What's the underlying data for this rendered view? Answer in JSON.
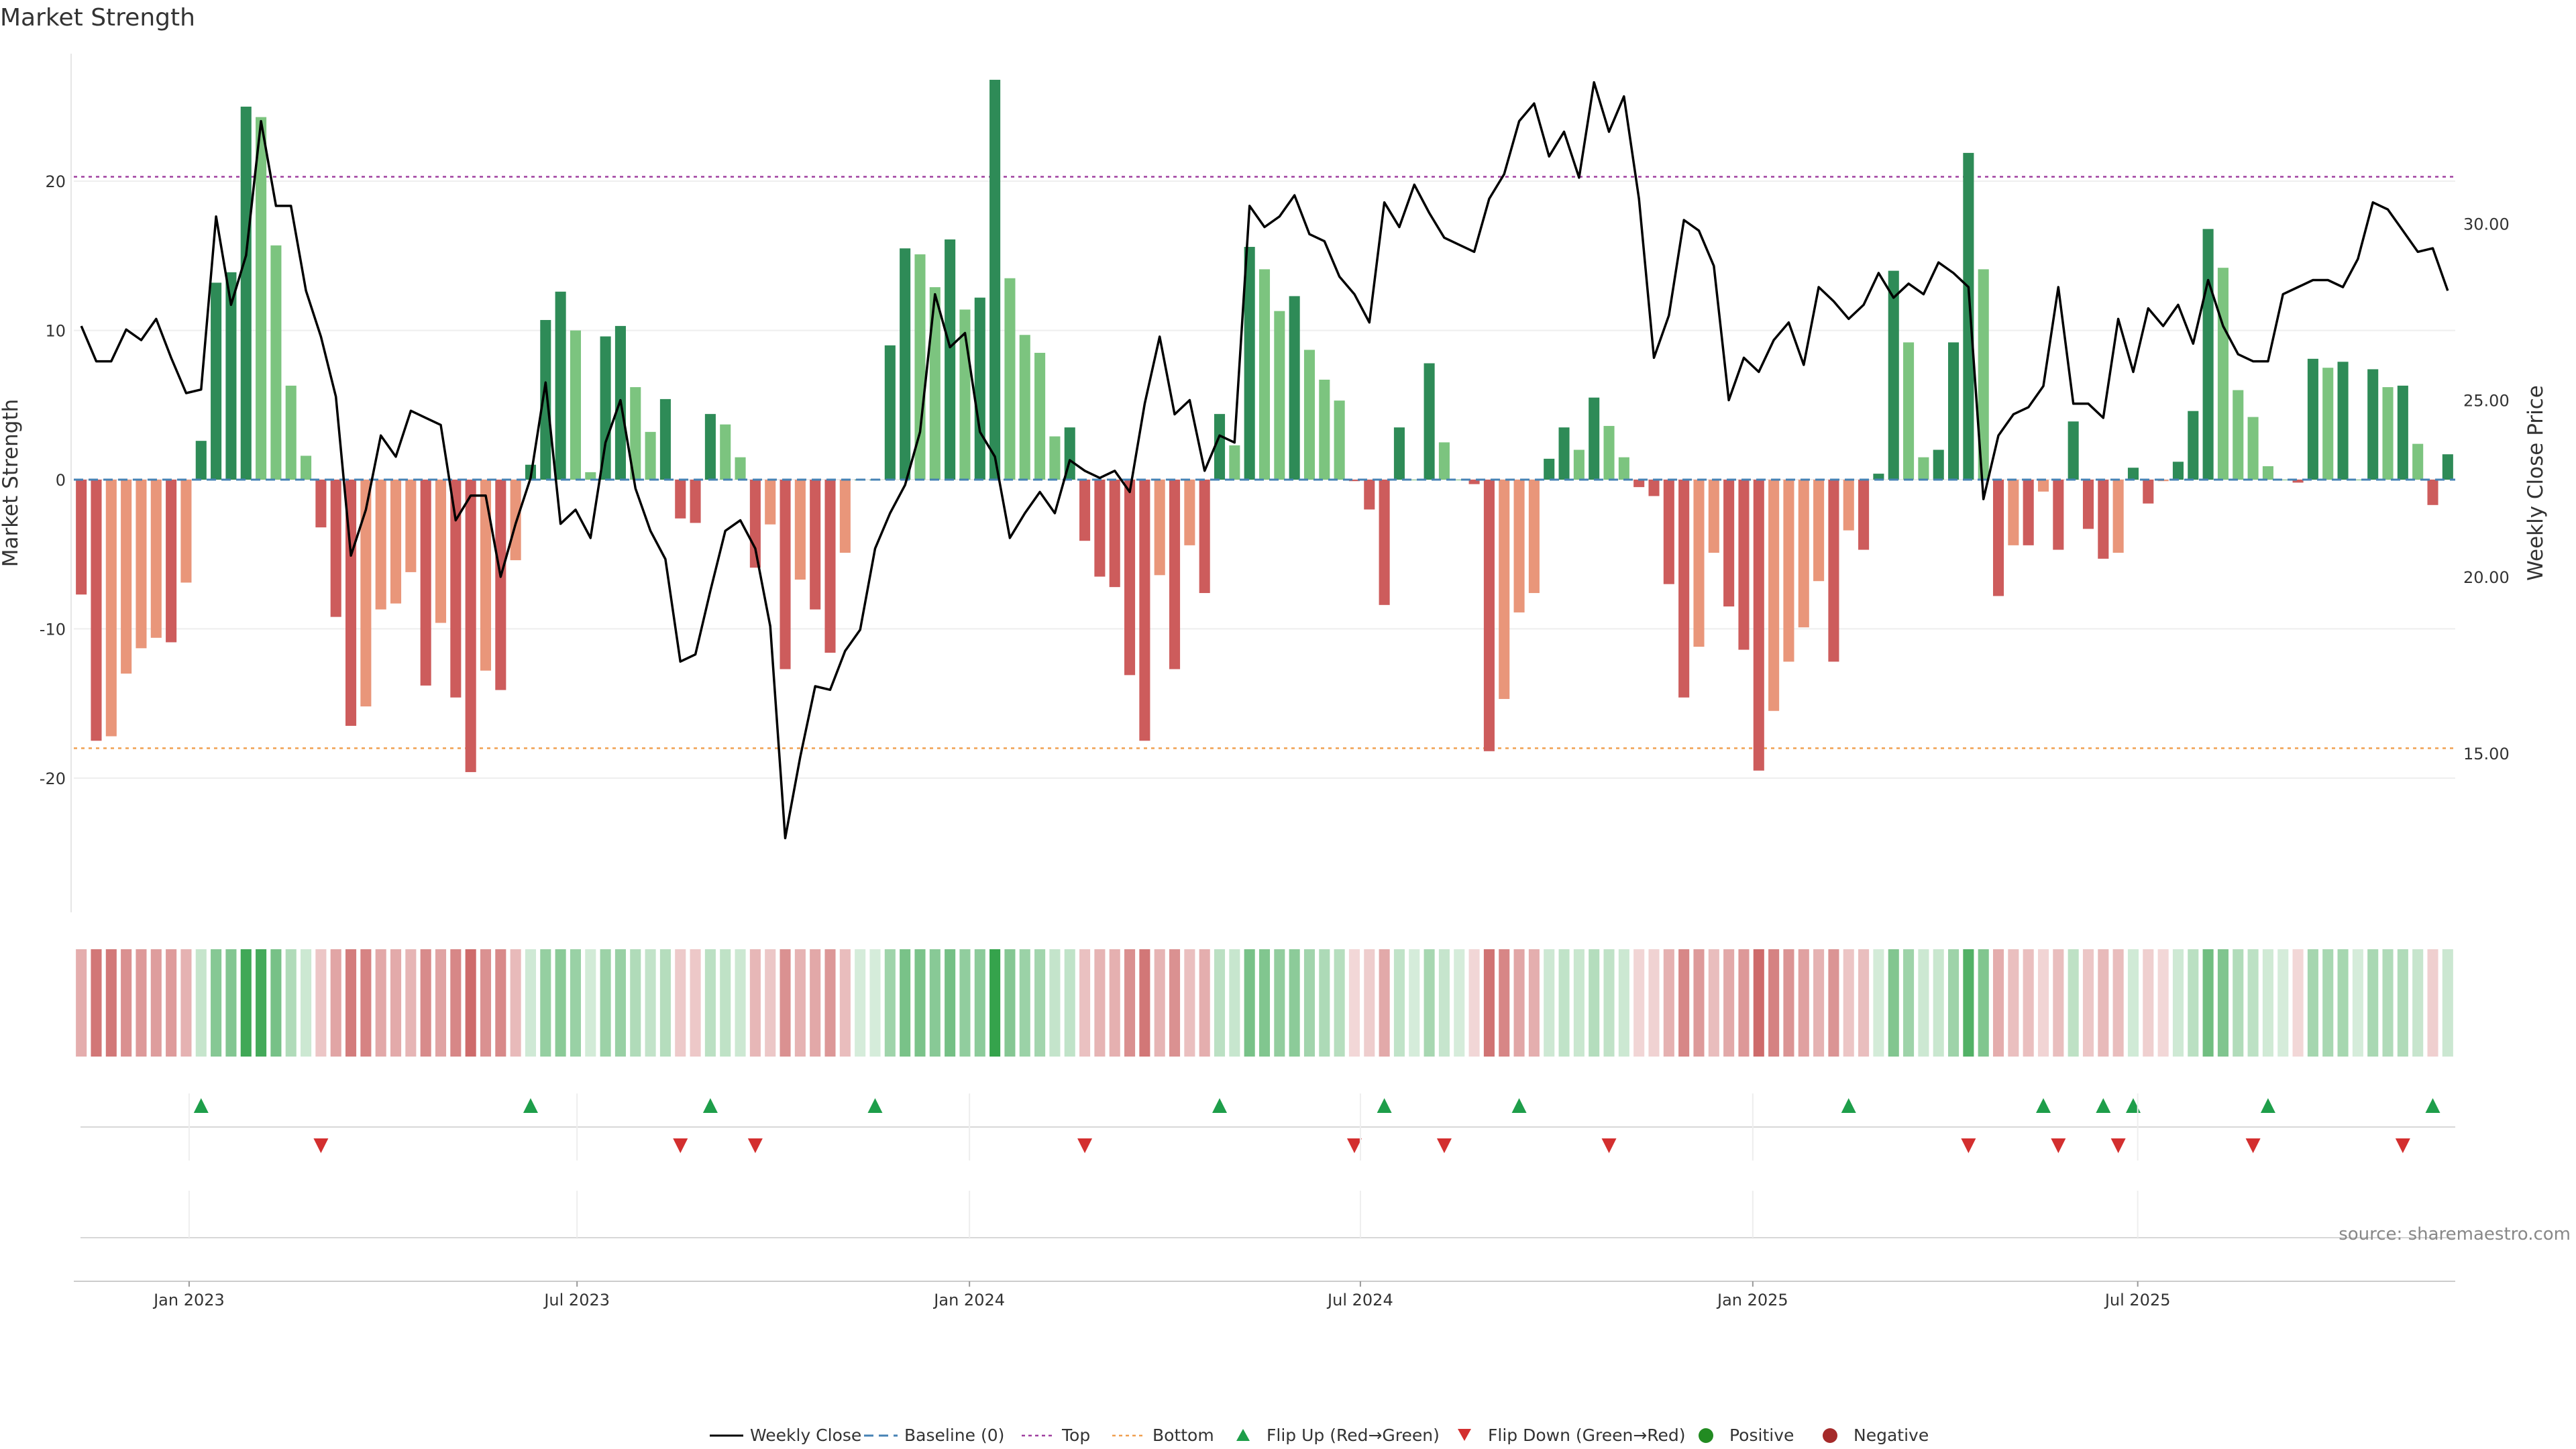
{
  "chart_data": {
    "type": "bar",
    "title": "Market Strength",
    "ylabel_left": "Market Strength",
    "ylabel_right": "Weekly Close Price",
    "source": "source: sharemaestro.com",
    "ylim_left": [
      -29,
      29
    ],
    "ylim_right": [
      10.5,
      35
    ],
    "yticks_left": [
      -20,
      -10,
      0,
      10,
      20
    ],
    "yticks_right": [
      "15.00",
      "20.00",
      "25.00",
      "30.00"
    ],
    "x_ticks": [
      "Jan 2023",
      "Jul 2023",
      "Jan 2024",
      "Jul 2024",
      "Jan 2025",
      "Jul 2025"
    ],
    "top_level": 20.3,
    "bottom_level": -18,
    "colors": {
      "strong_positive": "#2e8b57",
      "weak_positive": "#7cc47f",
      "strong_negative": "#cd5c5c",
      "weak_negative": "#e9967a",
      "price_line": "#000000",
      "baseline": "#4682b4",
      "top_line": "#a040a0",
      "bottom_line": "#f0a050",
      "flip_up": "#1e9e4a",
      "flip_down": "#d32f2f",
      "positive_dot": "#228b22",
      "negative_dot": "#a52a2a"
    },
    "strength": [
      -7.7,
      -17.5,
      -17.2,
      -13,
      -11.3,
      -10.6,
      -10.9,
      -6.9,
      2.6,
      13.2,
      13.9,
      25,
      24.3,
      15.7,
      6.3,
      1.6,
      -3.2,
      -9.2,
      -16.5,
      -15.2,
      -8.7,
      -8.3,
      -6.2,
      -13.8,
      -9.6,
      -14.6,
      -19.6,
      -12.8,
      -14.1,
      -5.4,
      1,
      10.7,
      12.6,
      10,
      0.5,
      9.6,
      10.3,
      6.2,
      3.2,
      5.4,
      -2.6,
      -2.9,
      4.4,
      3.7,
      1.5,
      -5.9,
      -3,
      -12.7,
      -6.7,
      -8.7,
      -11.6,
      -4.9,
      0,
      0,
      9,
      15.5,
      15.1,
      12.9,
      16.1,
      11.4,
      12.2,
      26.8,
      13.5,
      9.7,
      8.5,
      2.9,
      3.5,
      -4.1,
      -6.5,
      -7.2,
      -13.1,
      -17.5,
      -6.4,
      -12.7,
      -4.4,
      -7.6,
      4.4,
      2.3,
      15.6,
      14.1,
      11.3,
      12.3,
      8.7,
      6.7,
      5.3,
      -0.1,
      -2,
      -8.4,
      3.5,
      0,
      7.8,
      2.5,
      0,
      -0.3,
      -18.2,
      -14.7,
      -8.9,
      -7.6,
      1.4,
      3.5,
      2,
      5.5,
      3.6,
      1.5,
      -0.5,
      -1.1,
      -7,
      -14.6,
      -11.2,
      -4.9,
      -8.5,
      -11.4,
      -19.5,
      -15.5,
      -12.2,
      -9.9,
      -6.8,
      -12.2,
      -3.4,
      -4.7,
      0.4,
      14,
      9.2,
      1.5,
      2,
      9.2,
      21.9,
      14.1,
      -7.8,
      -4.4,
      -4.4,
      -0.8,
      -4.7,
      3.9,
      -3.3,
      -5.3,
      -4.9,
      0.8,
      -1.6,
      -0.1,
      1.2,
      4.6,
      16.8,
      14.2,
      6,
      4.2,
      0.9,
      0,
      -0.2,
      8.1,
      7.5,
      7.9,
      0,
      7.4,
      6.2,
      6.3,
      2.4,
      -1.7,
      1.7
    ],
    "weekly_close": [
      27.1,
      26.1,
      26.1,
      27,
      26.7,
      27.3,
      26.2,
      25.2,
      25.3,
      30.2,
      27.7,
      29.1,
      32.9,
      30.5,
      30.5,
      28.1,
      26.8,
      25.1,
      20.6,
      21.9,
      24,
      23.4,
      24.7,
      24.5,
      24.3,
      21.6,
      22.3,
      22.3,
      20.0,
      21.5,
      22.8,
      25.5,
      21.5,
      21.9,
      21.1,
      23.8,
      25,
      22.5,
      21.3,
      20.5,
      17.6,
      17.8,
      19.6,
      21.3,
      21.6,
      20.8,
      18.6,
      12.6,
      14.9,
      16.9,
      16.8,
      17.9,
      18.5,
      20.8,
      21.8,
      22.6,
      24.1,
      28.0,
      26.5,
      26.9,
      24.1,
      23.4,
      21.1,
      21.8,
      22.4,
      21.8,
      23.3,
      23.0,
      22.8,
      23,
      22.4,
      24.9,
      26.8,
      24.6,
      25,
      23.0,
      24.0,
      23.8,
      30.5,
      29.9,
      30.2,
      30.8,
      29.7,
      29.5,
      28.5,
      28.0,
      27.2,
      30.6,
      29.9,
      31.1,
      30.3,
      29.6,
      29.4,
      29.2,
      30.7,
      31.4,
      32.9,
      33.4,
      31.9,
      32.6,
      31.3,
      34.0,
      32.6,
      33.6,
      30.7,
      26.2,
      27.4,
      30.1,
      29.8,
      28.8,
      25,
      26.2,
      25.8,
      26.7,
      27.2,
      26,
      28.2,
      27.8,
      27.3,
      27.7,
      28.6,
      27.9,
      28.3,
      28.0,
      28.9,
      28.6,
      28.2,
      22.2,
      24.0,
      24.6,
      24.8,
      25.4,
      28.2,
      24.9,
      24.9,
      24.5,
      27.3,
      25.8,
      27.6,
      27.1,
      27.7,
      26.6,
      28.4,
      27.1,
      26.3,
      26.1,
      26.1,
      28.0,
      28.2,
      28.4,
      28.4,
      28.2,
      29,
      30.6,
      30.4,
      29.8,
      29.2,
      29.3,
      28.1
    ],
    "heatmap_intensity_note": "bottom strip mirrors strength colors with lighter shades",
    "flip_up_weeks": [
      8,
      30,
      42,
      53,
      76,
      87,
      96,
      118,
      131,
      135,
      137,
      146,
      157
    ],
    "flip_down_weeks": [
      16,
      40,
      45,
      67,
      85,
      91,
      102,
      126,
      132,
      136,
      145,
      155
    ],
    "legend": [
      {
        "label": "Weekly Close",
        "kind": "line"
      },
      {
        "label": "Baseline (0)",
        "kind": "dash"
      },
      {
        "label": "Top",
        "kind": "dot-top"
      },
      {
        "label": "Bottom",
        "kind": "dot-bottom"
      },
      {
        "label": "Flip Up (Red→Green)",
        "kind": "tri-up"
      },
      {
        "label": "Flip Down (Green→Red)",
        "kind": "tri-down"
      },
      {
        "label": "Positive",
        "kind": "dot-pos"
      },
      {
        "label": "Negative",
        "kind": "dot-neg"
      }
    ]
  }
}
